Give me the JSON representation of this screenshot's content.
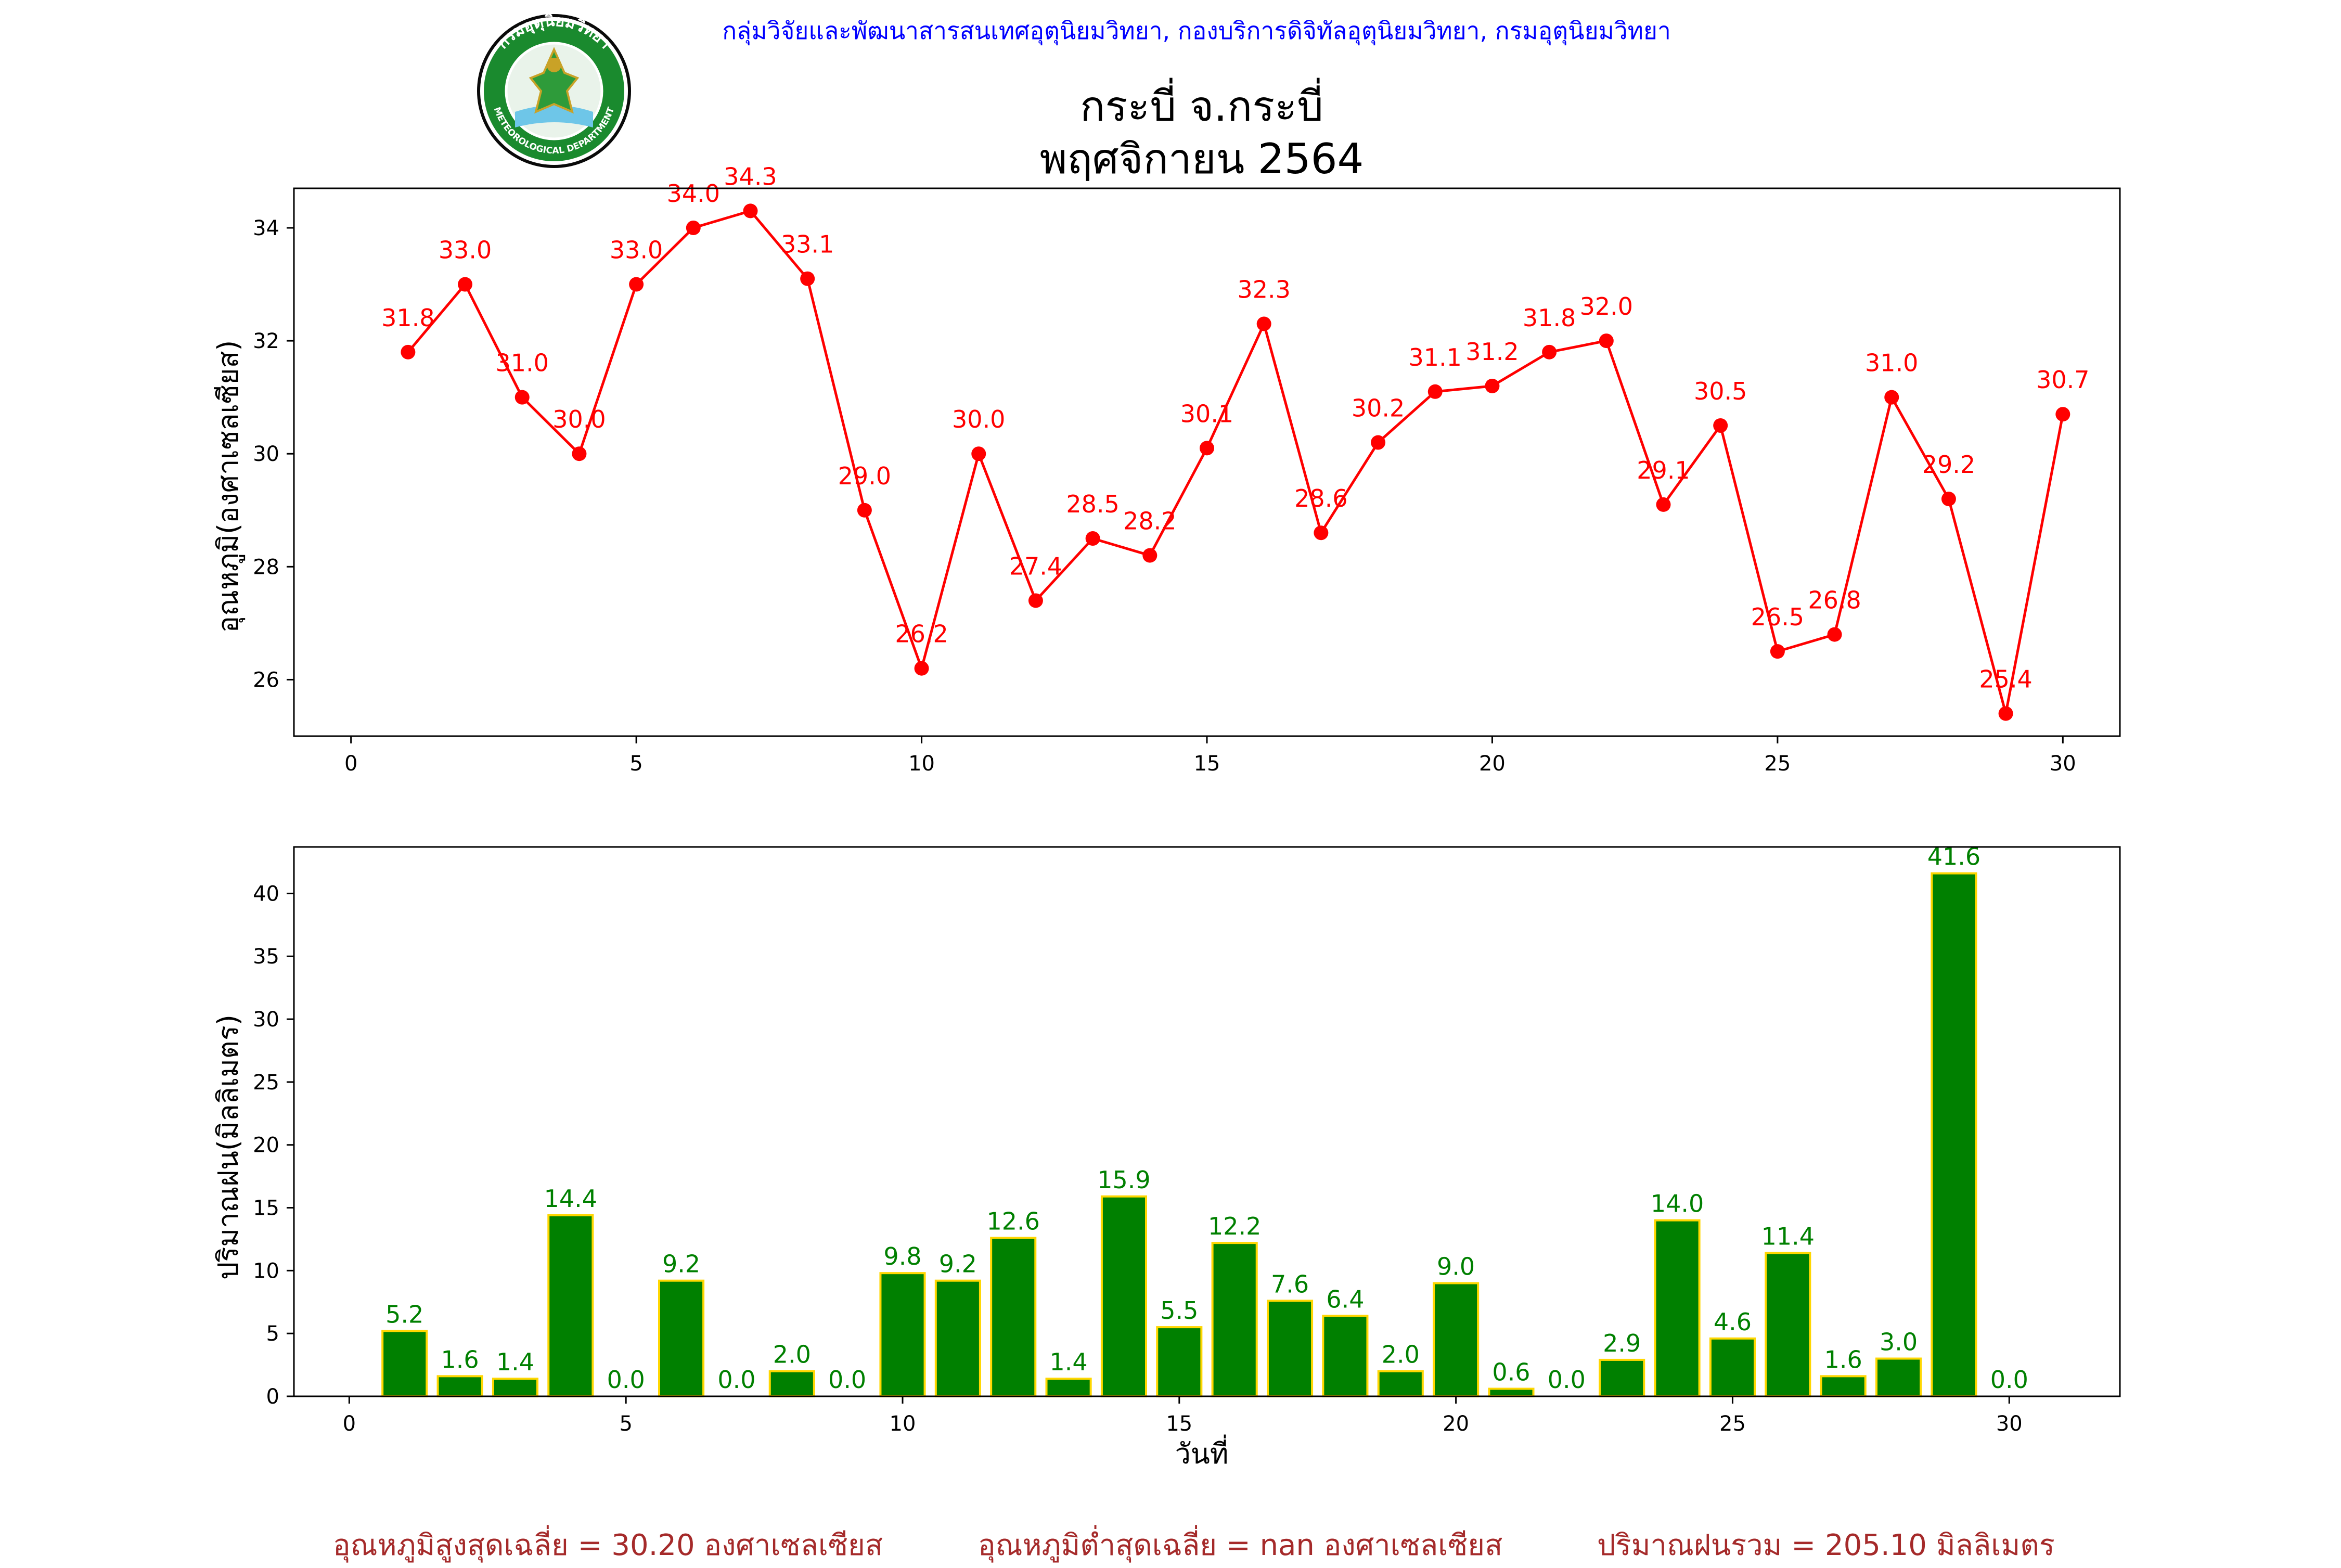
{
  "header": {
    "agency": "กลุ่มวิจัยและพัฒนาสารสนเทศอุตุนิยมวิทยา, กองบริการดิจิทัลอุตุนิยมวิทยา, กรมอุตุนิยมวิทยา",
    "title_line1": "กระบี่ จ.กระบี่",
    "title_line2": "พฤศจิกายน 2564",
    "logo": {
      "top_text": "กรมอุตุนิยมวิทยา",
      "bottom_text": "METEOROLOGICAL DEPARTMENT",
      "ring_color": "#1a8a2e"
    }
  },
  "footer": {
    "avg_max": "อุณหภูมิสูงสุดเฉลี่ย = 30.20 องศาเซลเซียส",
    "avg_min": "อุณหภูมิต่ำสุดเฉลี่ย = nan องศาเซลเซียส",
    "rain_total": "ปริมาณฝนรวม = 205.10 มิลลิเมตร"
  },
  "chart_data": [
    {
      "type": "line",
      "ylabel": "อุณหภูมิ(องศาเซลเซียส)",
      "xlabel": "",
      "color": "#ff0000",
      "xlim": [
        -1,
        31
      ],
      "ylim": [
        25,
        34.7
      ],
      "xticks": [
        0,
        5,
        10,
        15,
        20,
        25,
        30
      ],
      "yticks": [
        26,
        28,
        30,
        32,
        34
      ],
      "grid": false,
      "x": [
        1,
        2,
        3,
        4,
        5,
        6,
        7,
        8,
        9,
        10,
        11,
        12,
        13,
        14,
        15,
        16,
        17,
        18,
        19,
        20,
        21,
        22,
        23,
        24,
        25,
        26,
        27,
        28,
        29,
        30
      ],
      "values": [
        31.8,
        33.0,
        31.0,
        30.0,
        33.0,
        34.0,
        34.3,
        33.1,
        29.0,
        26.2,
        30.0,
        27.4,
        28.5,
        28.2,
        30.1,
        32.3,
        28.6,
        30.2,
        31.1,
        31.2,
        31.8,
        32.0,
        29.1,
        30.5,
        26.5,
        26.8,
        31.0,
        29.2,
        25.4,
        30.7
      ],
      "labels": [
        "31.8",
        "33.0",
        "31.0",
        "30.0",
        "33.0",
        "34.0",
        "34.3",
        "33.1",
        "29.0",
        "26.2",
        "30.0",
        "27.4",
        "28.5",
        "28.2",
        "30.1",
        "32.3",
        "28.6",
        "30.2",
        "31.1",
        "31.2",
        "31.8",
        "32.0",
        "29.1",
        "30.5",
        "26.5",
        "26.8",
        "31.0",
        "29.2",
        "25.4",
        "30.7"
      ]
    },
    {
      "type": "bar",
      "ylabel": "ปริมาณฝน(มิลลิเมตร)",
      "xlabel": "วันที่",
      "color": "#008000",
      "edge_color": "#ffd700",
      "label_color": "#008000",
      "xlim": [
        -1,
        32
      ],
      "ylim": [
        0,
        43.7
      ],
      "xticks": [
        0,
        5,
        10,
        15,
        20,
        25,
        30
      ],
      "yticks": [
        0,
        5,
        10,
        15,
        20,
        25,
        30,
        35,
        40
      ],
      "grid": false,
      "x": [
        1,
        2,
        3,
        4,
        5,
        6,
        7,
        8,
        9,
        10,
        11,
        12,
        13,
        14,
        15,
        16,
        17,
        18,
        19,
        20,
        21,
        22,
        23,
        24,
        25,
        26,
        27,
        28,
        29,
        30
      ],
      "values": [
        5.2,
        1.6,
        1.4,
        14.4,
        0.0,
        9.2,
        0.0,
        2.0,
        0.0,
        9.8,
        9.2,
        12.6,
        1.4,
        15.9,
        5.5,
        12.2,
        7.6,
        6.4,
        2.0,
        9.0,
        0.6,
        0.0,
        2.9,
        14.0,
        4.6,
        11.4,
        1.6,
        3.0,
        41.6,
        0.0
      ],
      "labels": [
        "5.2",
        "1.6",
        "1.4",
        "14.4",
        "0.0",
        "9.2",
        "0.0",
        "2.0",
        "0.0",
        "9.8",
        "9.2",
        "12.6",
        "1.4",
        "15.9",
        "5.5",
        "12.2",
        "7.6",
        "6.4",
        "2.0",
        "9.0",
        "0.6",
        "0.0",
        "2.9",
        "14.0",
        "4.6",
        "11.4",
        "1.6",
        "3.0",
        "41.6",
        "0.0"
      ]
    }
  ]
}
